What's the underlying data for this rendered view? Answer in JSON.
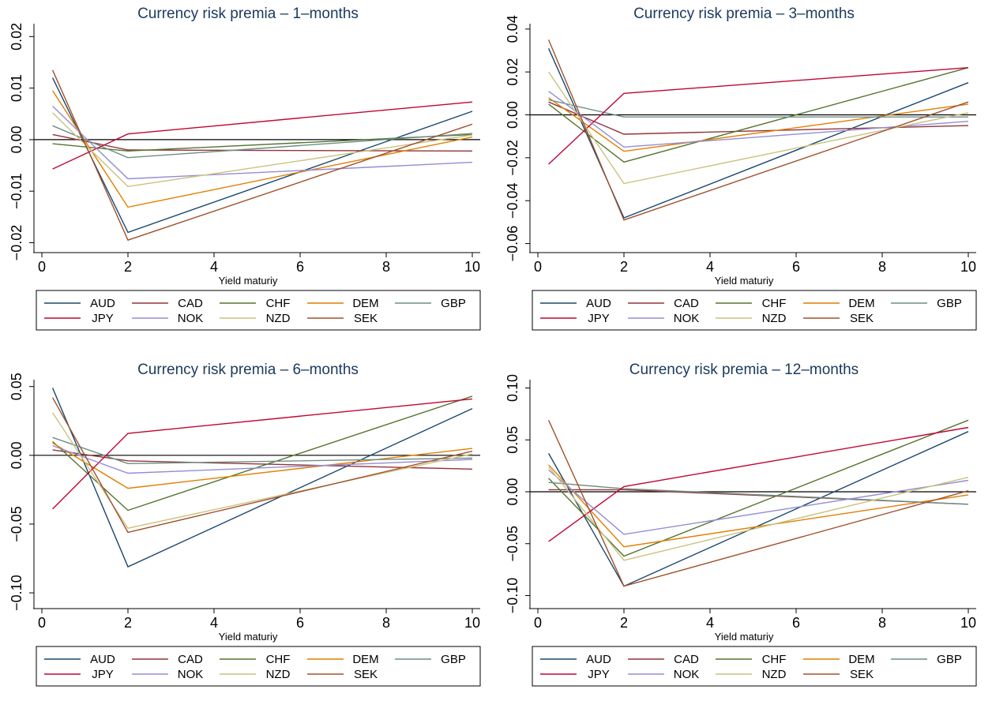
{
  "colors": {
    "AUD": "#1a476f",
    "CAD": "#90353b",
    "CHF": "#55752f",
    "DEM": "#e37e00",
    "GBP": "#6e8e84",
    "JPY": "#c10534",
    "NOK": "#938dd2",
    "NZD": "#cac27e",
    "SEK": "#a0522d"
  },
  "legend": [
    "AUD",
    "CAD",
    "CHF",
    "DEM",
    "GBP",
    "JPY",
    "NOK",
    "NZD",
    "SEK"
  ],
  "chart_data": [
    {
      "type": "line",
      "title": "Currency risk premia – 1–months",
      "xlabel": "Yield maturiy",
      "x": [
        0.25,
        2,
        10
      ],
      "xticks": [
        0,
        2,
        4,
        6,
        8,
        10
      ],
      "xlim": [
        0,
        10
      ],
      "yticks": [
        -0.02,
        -0.01,
        0.0,
        0.01,
        0.02
      ],
      "ytick_labels": [
        "−0.02",
        "−0.01",
        "0.00",
        "0.01",
        "0.02"
      ],
      "ylim": [
        -0.021,
        0.0225
      ],
      "series": [
        {
          "name": "AUD",
          "values": [
            0.012,
            -0.018,
            0.0055
          ]
        },
        {
          "name": "CAD",
          "values": [
            0.001,
            -0.002,
            -0.0022
          ]
        },
        {
          "name": "CHF",
          "values": [
            -0.0008,
            -0.0022,
            0.001
          ]
        },
        {
          "name": "DEM",
          "values": [
            0.0095,
            -0.0131,
            0.0005
          ]
        },
        {
          "name": "GBP",
          "values": [
            0.0027,
            -0.0035,
            0.0012
          ]
        },
        {
          "name": "JPY",
          "values": [
            -0.0057,
            0.0011,
            0.0073
          ]
        },
        {
          "name": "NOK",
          "values": [
            0.0065,
            -0.0076,
            -0.0044
          ]
        },
        {
          "name": "NZD",
          "values": [
            0.0052,
            -0.0091,
            0.0009
          ]
        },
        {
          "name": "SEK",
          "values": [
            0.0135,
            -0.0195,
            0.003
          ]
        }
      ]
    },
    {
      "type": "line",
      "title": "Currency risk premia – 3–months",
      "xlabel": "Yield maturiy",
      "x": [
        0.25,
        2,
        10
      ],
      "xticks": [
        0,
        2,
        4,
        6,
        8,
        10
      ],
      "xlim": [
        0,
        10
      ],
      "yticks": [
        -0.06,
        -0.04,
        -0.02,
        0.0,
        0.02,
        0.04
      ],
      "ytick_labels": [
        "−0.06",
        "−0.04",
        "−0.02",
        "0.00",
        "0.02",
        "0.04"
      ],
      "ylim": [
        -0.062,
        0.0425
      ],
      "series": [
        {
          "name": "AUD",
          "values": [
            0.031,
            -0.048,
            0.015
          ]
        },
        {
          "name": "CAD",
          "values": [
            0.006,
            -0.009,
            -0.005
          ]
        },
        {
          "name": "CHF",
          "values": [
            0.005,
            -0.022,
            0.022
          ]
        },
        {
          "name": "DEM",
          "values": [
            0.008,
            -0.017,
            0.005
          ]
        },
        {
          "name": "GBP",
          "values": [
            0.007,
            -0.001,
            -0.001
          ]
        },
        {
          "name": "JPY",
          "values": [
            -0.023,
            0.01,
            0.022
          ]
        },
        {
          "name": "NOK",
          "values": [
            0.011,
            -0.015,
            -0.003
          ]
        },
        {
          "name": "NZD",
          "values": [
            0.02,
            -0.032,
            0.001
          ]
        },
        {
          "name": "SEK",
          "values": [
            0.035,
            -0.049,
            0.006
          ]
        }
      ]
    },
    {
      "type": "line",
      "title": "Currency risk premia – 6–months",
      "xlabel": "Yield maturiy",
      "x": [
        0.25,
        2,
        10
      ],
      "xticks": [
        0,
        2,
        4,
        6,
        8,
        10
      ],
      "xlim": [
        0,
        10
      ],
      "yticks": [
        -0.1,
        -0.05,
        0.0,
        0.05
      ],
      "ytick_labels": [
        "−0.10",
        "−0.05",
        "0.00",
        "0.05"
      ],
      "ylim": [
        -0.108,
        0.055
      ],
      "series": [
        {
          "name": "AUD",
          "values": [
            0.049,
            -0.081,
            0.034
          ]
        },
        {
          "name": "CAD",
          "values": [
            0.004,
            -0.004,
            -0.01
          ]
        },
        {
          "name": "CHF",
          "values": [
            0.01,
            -0.04,
            0.043
          ]
        },
        {
          "name": "DEM",
          "values": [
            0.009,
            -0.024,
            0.005
          ]
        },
        {
          "name": "GBP",
          "values": [
            0.013,
            -0.006,
            -0.002
          ]
        },
        {
          "name": "JPY",
          "values": [
            -0.039,
            0.016,
            0.041
          ]
        },
        {
          "name": "NOK",
          "values": [
            0.007,
            -0.013,
            -0.003
          ]
        },
        {
          "name": "NZD",
          "values": [
            0.031,
            -0.053,
            0.001
          ]
        },
        {
          "name": "SEK",
          "values": [
            0.042,
            -0.056,
            0.003
          ]
        }
      ]
    },
    {
      "type": "line",
      "title": "Currency risk premia – 12–months",
      "xlabel": "Yield maturiy",
      "x": [
        0.25,
        2,
        10
      ],
      "xticks": [
        0,
        2,
        4,
        6,
        8,
        10
      ],
      "xlim": [
        0,
        10
      ],
      "yticks": [
        -0.1,
        -0.05,
        0.0,
        0.05,
        0.1
      ],
      "ytick_labels": [
        "−0.10",
        "−0.05",
        "0.00",
        "0.05",
        "0.10"
      ],
      "ylim": [
        -0.108,
        0.108
      ],
      "series": [
        {
          "name": "AUD",
          "values": [
            0.037,
            -0.091,
            0.058
          ]
        },
        {
          "name": "CAD",
          "values": [
            0.002,
            0.002,
            -0.012
          ]
        },
        {
          "name": "CHF",
          "values": [
            0.013,
            -0.062,
            0.069
          ]
        },
        {
          "name": "DEM",
          "values": [
            0.026,
            -0.053,
            -0.003
          ]
        },
        {
          "name": "GBP",
          "values": [
            0.009,
            0.003,
            -0.012
          ]
        },
        {
          "name": "JPY",
          "values": [
            -0.048,
            0.005,
            0.062
          ]
        },
        {
          "name": "NOK",
          "values": [
            0.021,
            -0.041,
            0.011
          ]
        },
        {
          "name": "NZD",
          "values": [
            0.024,
            -0.066,
            0.014
          ]
        },
        {
          "name": "SEK",
          "values": [
            0.069,
            -0.091,
            0.001
          ]
        }
      ]
    }
  ]
}
